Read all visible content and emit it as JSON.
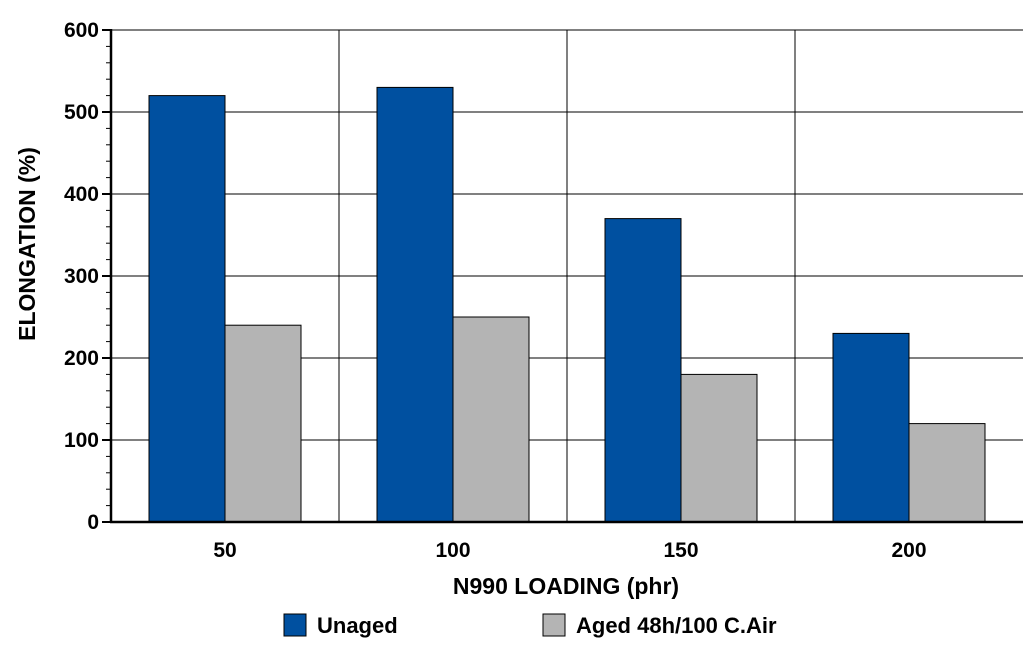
{
  "chart_data": {
    "type": "bar",
    "title": "",
    "xlabel": "N990 LOADING (phr)",
    "ylabel": "ELONGATION (%)",
    "categories": [
      "50",
      "100",
      "150",
      "200"
    ],
    "ylim": [
      0,
      600
    ],
    "yticks": [
      0,
      100,
      200,
      300,
      400,
      500,
      600
    ],
    "grid": true,
    "legend_position": "bottom",
    "series": [
      {
        "name": "Unaged",
        "color": "#0050a0",
        "values": [
          520,
          530,
          370,
          230
        ]
      },
      {
        "name": "Aged 48h/100 C.Air",
        "color": "#b4b4b4",
        "values": [
          240,
          250,
          180,
          120
        ]
      }
    ]
  }
}
